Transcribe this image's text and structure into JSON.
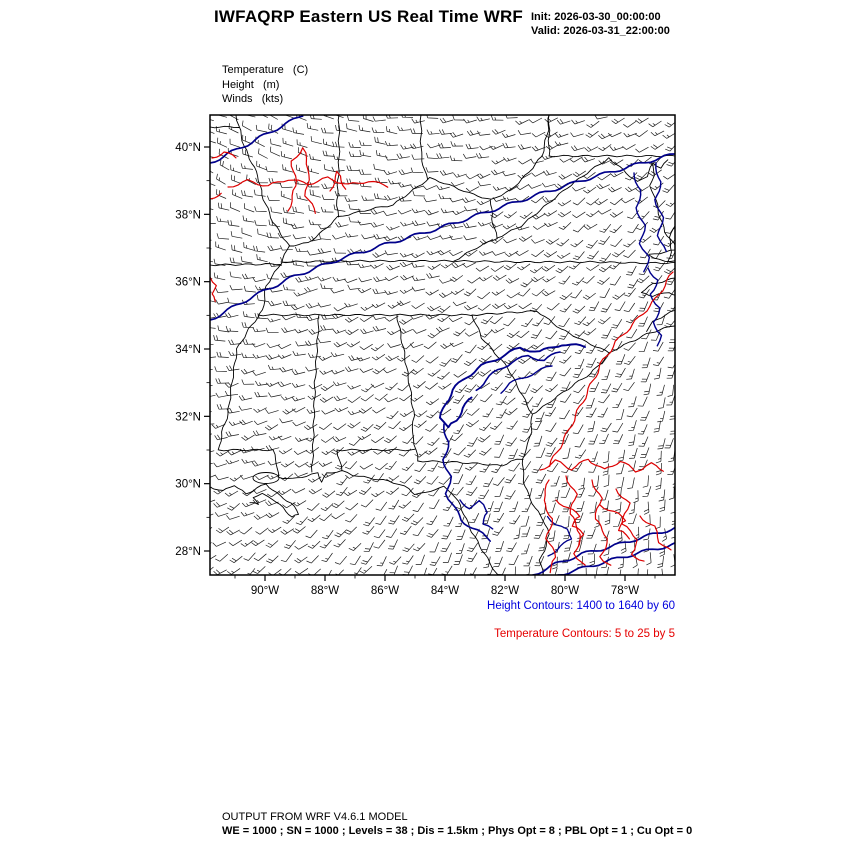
{
  "header": {
    "title": "IWFAQRP Eastern US Real Time WRF",
    "init_label": "Init: 2026-03-30_00:00:00",
    "valid_label": "Valid: 2026-03-31_22:00:00"
  },
  "legend": {
    "temperature": "Temperature   (C)",
    "height": "Height   (m)",
    "winds": "Winds   (kts)"
  },
  "captions": {
    "height": "Height Contours: 1400 to 1640 by 60",
    "temperature": "Temperature Contours: 5 to 25 by 5"
  },
  "footer": {
    "model": "OUTPUT FROM WRF V4.6.1 MODEL",
    "namelist": "WE = 1000 ; SN = 1000 ; Levels = 38 ; Dis = 1.5km ; Phys Opt = 8 ; PBL Opt = 1 ; Cu Opt = 0"
  },
  "colors": {
    "height_contour": "#00008b",
    "temperature_contour": "#dd0000",
    "map_outline": "#000000",
    "wind_barb": "#1c1c1c"
  },
  "axes": {
    "lat_ticks": [
      {
        "label": "40°N",
        "lat": 40
      },
      {
        "label": "38°N",
        "lat": 38
      },
      {
        "label": "36°N",
        "lat": 36
      },
      {
        "label": "34°N",
        "lat": 34
      },
      {
        "label": "32°N",
        "lat": 32
      },
      {
        "label": "30°N",
        "lat": 30
      },
      {
        "label": "28°N",
        "lat": 28
      }
    ],
    "lon_ticks": [
      {
        "label": "90°W",
        "lon": -90
      },
      {
        "label": "88°W",
        "lon": -88
      },
      {
        "label": "86°W",
        "lon": -86
      },
      {
        "label": "84°W",
        "lon": -84
      },
      {
        "label": "82°W",
        "lon": -82
      },
      {
        "label": "80°W",
        "lon": -80
      },
      {
        "label": "78°W",
        "lon": -78
      }
    ]
  },
  "chart_data": {
    "type": "contour-map",
    "region": "Eastern US",
    "title": "IWFAQRP Eastern US Real Time WRF",
    "init_time": "2026-03-30_00:00:00",
    "valid_time": "2026-03-31_22:00:00",
    "model": "WRF V4.6.1",
    "extent": {
      "lon_min": -91.8,
      "lon_max": -76.3,
      "lat_min": 27.3,
      "lat_max": 41.0
    },
    "fields": [
      {
        "name": "Temperature",
        "units": "C",
        "render": "contours",
        "color": "#dd0000",
        "levels": [
          5,
          10,
          15,
          20,
          25
        ],
        "range_text": "5 to 25 by 5"
      },
      {
        "name": "Height",
        "units": "m",
        "render": "contours",
        "color": "#00008b",
        "levels": [
          1400,
          1460,
          1520,
          1580,
          1640
        ],
        "range_text": "1400 to 1640 by 60"
      },
      {
        "name": "Winds",
        "units": "kts",
        "render": "wind-barbs",
        "color": "#000000"
      }
    ],
    "x_tick_labels": [
      "90°W",
      "88°W",
      "86°W",
      "84°W",
      "82°W",
      "80°W",
      "78°W"
    ],
    "y_tick_labels": [
      "40°N",
      "38°N",
      "36°N",
      "34°N",
      "32°N",
      "30°N",
      "28°N"
    ]
  }
}
